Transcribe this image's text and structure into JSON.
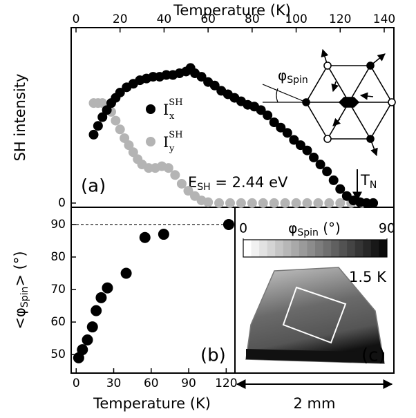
{
  "chart_data": [
    {
      "type": "scatter",
      "panel": "(a)",
      "xlabel": "Temperature (K)",
      "ylabel": "SH intensity",
      "xlim": [
        -2.2,
        144.4
      ],
      "xticks": [
        0,
        20,
        40,
        60,
        80,
        100,
        120,
        140
      ],
      "ylim": [
        -0.024,
        1.0
      ],
      "yticks": [
        0
      ],
      "series": [
        {
          "name": "I",
          "name_sub": "x",
          "name_sup": "SH",
          "color": "#000000",
          "x": [
            8,
            10,
            12,
            14,
            16,
            18,
            20,
            23,
            26,
            29,
            32,
            35,
            38,
            41,
            44,
            47,
            50,
            52,
            54,
            57,
            60,
            63,
            66,
            69,
            72,
            75,
            78,
            81,
            84,
            87,
            90,
            93,
            96,
            99,
            102,
            105,
            108,
            111,
            114,
            117,
            120,
            123,
            126,
            129,
            132,
            135
          ],
          "values": [
            0.39,
            0.44,
            0.49,
            0.53,
            0.57,
            0.6,
            0.63,
            0.66,
            0.68,
            0.7,
            0.71,
            0.72,
            0.72,
            0.73,
            0.73,
            0.74,
            0.75,
            0.77,
            0.74,
            0.72,
            0.69,
            0.67,
            0.64,
            0.62,
            0.6,
            0.58,
            0.56,
            0.55,
            0.53,
            0.5,
            0.46,
            0.43,
            0.4,
            0.36,
            0.33,
            0.3,
            0.26,
            0.22,
            0.18,
            0.13,
            0.08,
            0.04,
            0.015,
            0.005,
            0,
            0
          ]
        },
        {
          "name": "I",
          "name_sub": "y",
          "name_sup": "SH",
          "color": "#b4b4b4",
          "x": [
            8,
            10,
            12,
            14,
            16,
            18,
            20,
            22,
            24,
            26,
            28,
            30,
            33,
            36,
            39,
            42,
            45,
            48,
            51,
            54,
            57,
            60,
            65,
            70,
            75,
            80,
            85,
            90,
            95,
            100,
            105,
            110,
            115,
            120,
            125,
            130,
            135
          ],
          "values": [
            0.57,
            0.57,
            0.57,
            0.55,
            0.52,
            0.47,
            0.42,
            0.37,
            0.33,
            0.29,
            0.25,
            0.22,
            0.2,
            0.2,
            0.21,
            0.2,
            0.16,
            0.11,
            0.07,
            0.04,
            0.015,
            0.005,
            0,
            0,
            0,
            0,
            0,
            0,
            0,
            0,
            0,
            0,
            0,
            0,
            0,
            0,
            0
          ]
        }
      ],
      "energy_label": {
        "main": "E",
        "sub": "SH",
        "rest": " = 2.44 eV"
      },
      "neel_label": {
        "main": "T",
        "sub": "N"
      },
      "angle_label": {
        "main": "φ",
        "sub": "Spin"
      }
    },
    {
      "type": "scatter",
      "panel": "(b)",
      "xlabel": "Temperature (K)",
      "ylabel": {
        "pre": "<φ",
        "sub": "Spin",
        "post": "> (°)"
      },
      "xlim": [
        -4,
        127
      ],
      "xticks": [
        0,
        30,
        60,
        90,
        120
      ],
      "ylim": [
        44.3,
        95.3
      ],
      "yticks": [
        50,
        60,
        70,
        80,
        90
      ],
      "reference_line": 90,
      "color": "#000000",
      "x": [
        2,
        5,
        9,
        13,
        16,
        20,
        25,
        40,
        55,
        70,
        122
      ],
      "values": [
        49,
        51.5,
        54.5,
        58.5,
        63.5,
        67.5,
        70.5,
        75,
        86,
        87,
        90
      ]
    },
    {
      "type": "image",
      "panel": "(c)",
      "colorbar_label": {
        "main": "φ",
        "sub": "Spin",
        "rest": " (°)"
      },
      "clim": [
        0,
        90
      ],
      "cticks": [
        0,
        90
      ],
      "temperature_label": "1.5 K",
      "scale_label": "2 mm"
    }
  ]
}
